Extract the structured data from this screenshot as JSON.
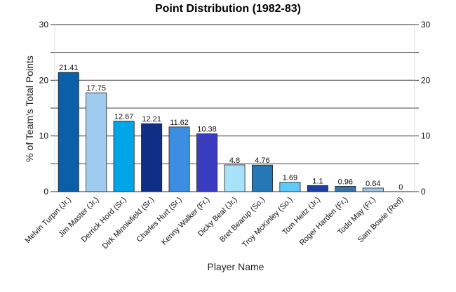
{
  "chart_data": {
    "type": "bar",
    "title": "Point Distribution (1982-83)",
    "xlabel": "Player Name",
    "ylabel": "% of Team's Total Points",
    "ylim": [
      0,
      30
    ],
    "yticks": [
      "0",
      "10",
      "20",
      "30"
    ],
    "grid": true,
    "legend": "none",
    "categories": [
      "Melvin Turpin (Jr.)",
      "Jim Master (Jr.)",
      "Derrick Hord (Sr.)",
      "Dirk Minniefield (Sr.)",
      "Charles Hurt (Sr.)",
      "Kenny Walker (Fr.)",
      "Dicky Beal (Jr.)",
      "Bret Bearup (So.)",
      "Troy McKinley (So.)",
      "Tom Heitz (Jr.)",
      "Roger Harden (Fr.)",
      "Todd May (Fr.)",
      "Sam Bowie (Red)"
    ],
    "values": [
      21.41,
      17.75,
      12.67,
      12.21,
      11.62,
      10.38,
      4.8,
      4.76,
      1.69,
      1.1,
      0.96,
      0.64,
      0
    ],
    "value_labels": [
      "21.41",
      "17.75",
      "12.67",
      "12.21",
      "11.62",
      "10.38",
      "4.8",
      "4.76",
      "1.69",
      "1.1",
      "0.96",
      "0.64",
      "0"
    ],
    "colors": [
      "#0b5ea8",
      "#9fcbef",
      "#00a6e8",
      "#0f2f86",
      "#3d8ee0",
      "#3a3dbf",
      "#a8e2f8",
      "#2577b5",
      "#5dcaf7",
      "#1a3fa0",
      "#3574a8",
      "#a4c4e4",
      "#bfd9f2"
    ]
  }
}
